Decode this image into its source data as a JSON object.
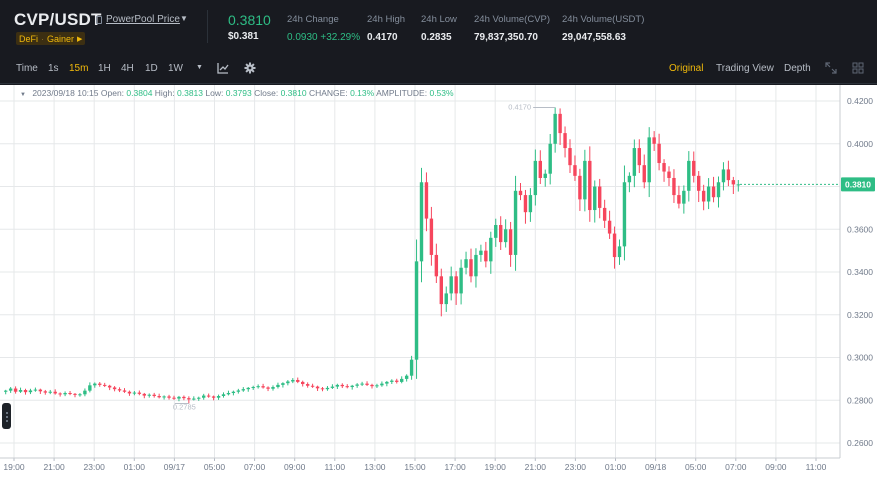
{
  "header": {
    "pair": "CVP/USDT",
    "source_link": "PowerPool Price",
    "tags": [
      "DeFi",
      "Gainer"
    ],
    "last_price": "0.3810",
    "last_price_usd": "$0.381",
    "stats": [
      {
        "label": "24h Change",
        "value": "0.0930 +32.29%",
        "up": true
      },
      {
        "label": "24h High",
        "value": "0.4170"
      },
      {
        "label": "24h Low",
        "value": "0.2835"
      },
      {
        "label": "24h Volume(CVP)",
        "value": "79,837,350.70"
      },
      {
        "label": "24h Volume(USDT)",
        "value": "29,047,558.63"
      }
    ]
  },
  "toolbar": {
    "intervals": [
      "Time",
      "1s",
      "15m",
      "1H",
      "4H",
      "1D",
      "1W"
    ],
    "active_interval": "15m",
    "views": [
      "Original",
      "Trading View",
      "Depth"
    ],
    "active_view": "Original"
  },
  "ohlc": {
    "date": "2023/09/18 10:15",
    "open_label": "Open:",
    "open": "0.3804",
    "high_label": "High:",
    "high": "0.3813",
    "low_label": "Low:",
    "low": "0.3793",
    "close_label": "Close:",
    "close": "0.3810",
    "change_label": "CHANGE:",
    "change": "0.13%",
    "amplitude_label": "AMPLITUDE:",
    "amplitude": "0.53%"
  },
  "colors": {
    "up": "#2ebd85",
    "down": "#f6465d",
    "accent": "#f0b90b",
    "bg": "#181a20"
  },
  "chart_data": {
    "type": "candlestick",
    "y_ticks": [
      "0.4200",
      "0.4000",
      "0.3800",
      "0.3600",
      "0.3400",
      "0.3200",
      "0.3000",
      "0.2800",
      "0.2600"
    ],
    "x_ticks": [
      "19:00",
      "21:00",
      "23:00",
      "01:00",
      "09/17",
      "05:00",
      "07:00",
      "09:00",
      "11:00",
      "13:00",
      "15:00",
      "17:00",
      "19:00",
      "21:00",
      "23:00",
      "01:00",
      "09/18",
      "05:00",
      "07:00",
      "09:00",
      "11:00"
    ],
    "ylim": [
      0.253,
      0.4275
    ],
    "current_price": "0.3810",
    "high_marker": "0.4170",
    "low_marker": "0.2785",
    "closes": [
      0.2845,
      0.2855,
      0.284,
      0.2848,
      0.2838,
      0.2846,
      0.285,
      0.2842,
      0.2836,
      0.284,
      0.2832,
      0.2828,
      0.2834,
      0.283,
      0.2826,
      0.2828,
      0.2845,
      0.287,
      0.2878,
      0.2872,
      0.2868,
      0.286,
      0.2852,
      0.2846,
      0.284,
      0.2832,
      0.2836,
      0.283,
      0.2822,
      0.2826,
      0.282,
      0.2814,
      0.2818,
      0.2812,
      0.2808,
      0.2816,
      0.281,
      0.2804,
      0.2808,
      0.2812,
      0.2822,
      0.2818,
      0.2812,
      0.282,
      0.2828,
      0.2834,
      0.284,
      0.2846,
      0.2852,
      0.2858,
      0.2862,
      0.2866,
      0.286,
      0.2854,
      0.2862,
      0.2872,
      0.288,
      0.2888,
      0.2895,
      0.2886,
      0.2876,
      0.2868,
      0.2864,
      0.2856,
      0.2852,
      0.2858,
      0.2864,
      0.2872,
      0.2866,
      0.2862,
      0.2868,
      0.2874,
      0.2878,
      0.2872,
      0.2866,
      0.287,
      0.2878,
      0.2886,
      0.2892,
      0.2886,
      0.29,
      0.2915,
      0.299,
      0.345,
      0.382,
      0.365,
      0.348,
      0.338,
      0.325,
      0.33,
      0.338,
      0.33,
      0.342,
      0.346,
      0.338,
      0.348,
      0.35,
      0.345,
      0.356,
      0.362,
      0.354,
      0.36,
      0.348,
      0.378,
      0.376,
      0.368,
      0.376,
      0.392,
      0.384,
      0.386,
      0.4,
      0.414,
      0.405,
      0.398,
      0.39,
      0.385,
      0.374,
      0.392,
      0.369,
      0.38,
      0.37,
      0.364,
      0.358,
      0.347,
      0.352,
      0.382,
      0.385,
      0.398,
      0.39,
      0.382,
      0.403,
      0.4,
      0.391,
      0.387,
      0.384,
      0.376,
      0.372,
      0.378,
      0.392,
      0.385,
      0.378,
      0.373,
      0.38,
      0.375,
      0.382,
      0.388,
      0.383,
      0.381,
      0.381
    ]
  }
}
